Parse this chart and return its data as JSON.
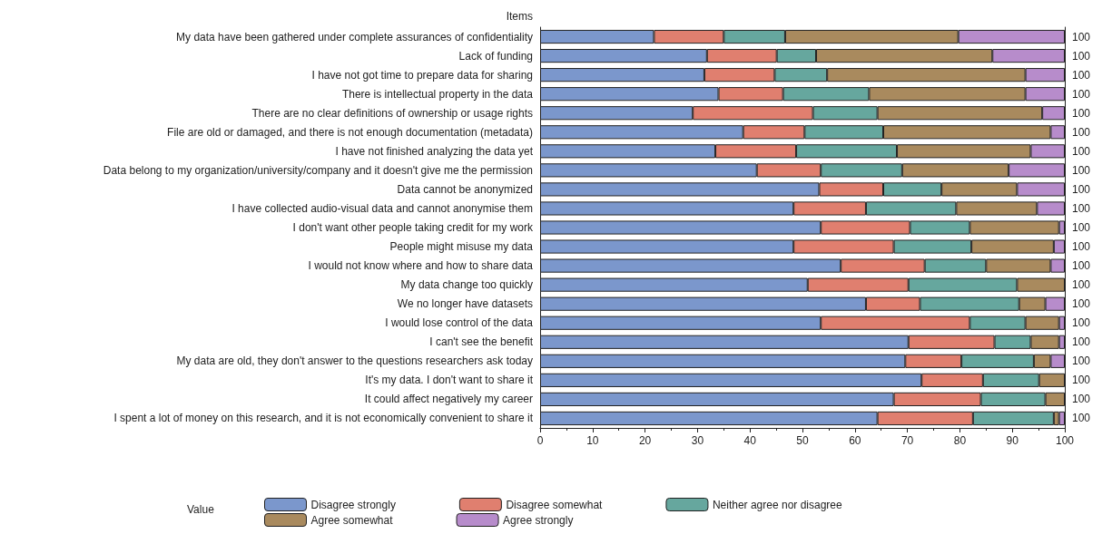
{
  "chart_data": {
    "type": "bar",
    "orientation": "horizontal",
    "stacked": true,
    "ylabel": "Items",
    "legend_title": "Value",
    "legend": "bottom",
    "grid": false,
    "categories": [
      "My data have been gathered under complete assurances of confidentiality",
      "Lack of funding",
      "I have not got time to prepare data for sharing",
      "There is intellectual property in the data",
      "There are no clear definitions of ownership or usage rights",
      "File are old or damaged, and there is not enough documentation (metadata)",
      "I have not finished analyzing the data yet",
      "Data belong to my organization/university/company and it doesn't give me the permission",
      "Data cannot be anonymized",
      "I have collected audio-visual data and cannot anonymise them",
      "I don't want other people taking credit for my work",
      "People might misuse my data",
      "I would not know where and how to share data",
      "My data change too quickly",
      "We no longer have datasets",
      "I would lose control of the data",
      "I can't see the benefit",
      "My data are old, they don't answer to the questions researchers ask today",
      "It's my data. I don't want to share it",
      "It could affect negatively my career",
      "I spent a lot of money on this research, and it is not economically convenient to share it"
    ],
    "series": [
      {
        "name": "Disagree strongly",
        "color": "#7b97cc",
        "values": [
          21.7,
          31.8,
          31.3,
          34.0,
          29.1,
          38.7,
          33.4,
          41.3,
          53.2,
          48.3,
          53.5,
          48.3,
          57.3,
          51.0,
          62.1,
          53.5,
          70.2,
          69.6,
          72.7,
          67.4,
          64.3
        ]
      },
      {
        "name": "Disagree somewhat",
        "color": "#e07f6f",
        "values": [
          13.3,
          13.3,
          13.4,
          12.3,
          22.9,
          11.7,
          15.4,
          12.2,
          12.2,
          13.8,
          17.0,
          19.1,
          16.0,
          19.2,
          10.3,
          28.4,
          16.4,
          10.7,
          11.7,
          16.6,
          18.2
        ]
      },
      {
        "name": "Neither agree nor disagree",
        "color": "#66a79e",
        "values": [
          11.7,
          7.5,
          10.0,
          16.4,
          12.3,
          15.0,
          19.2,
          15.5,
          11.1,
          17.2,
          11.4,
          14.8,
          11.7,
          20.7,
          18.9,
          10.6,
          6.9,
          13.8,
          10.7,
          12.3,
          15.4
        ]
      },
      {
        "name": "Agree somewhat",
        "color": "#a98a5e",
        "values": [
          33.0,
          33.6,
          37.8,
          29.8,
          31.4,
          31.9,
          25.5,
          20.3,
          14.4,
          15.4,
          17.0,
          15.7,
          12.3,
          9.1,
          5.0,
          6.4,
          5.4,
          3.2,
          4.9,
          3.7,
          1.0
        ]
      },
      {
        "name": "Agree strongly",
        "color": "#b78ccb",
        "values": [
          20.3,
          13.8,
          7.5,
          7.5,
          4.3,
          2.7,
          6.5,
          10.7,
          9.1,
          5.3,
          1.1,
          2.1,
          2.7,
          0,
          3.7,
          1.1,
          1.1,
          2.7,
          0,
          0,
          1.1
        ]
      }
    ],
    "totals": [
      "100",
      "100",
      "100",
      "100",
      "100",
      "100",
      "100",
      "100",
      "100",
      "100",
      "100",
      "100",
      "100",
      "100",
      "100",
      "100",
      "100",
      "100",
      "100",
      "100",
      "100"
    ],
    "xlim": [
      0,
      100
    ],
    "xticks": [
      0,
      10,
      20,
      30,
      40,
      50,
      60,
      70,
      80,
      90,
      100
    ]
  }
}
